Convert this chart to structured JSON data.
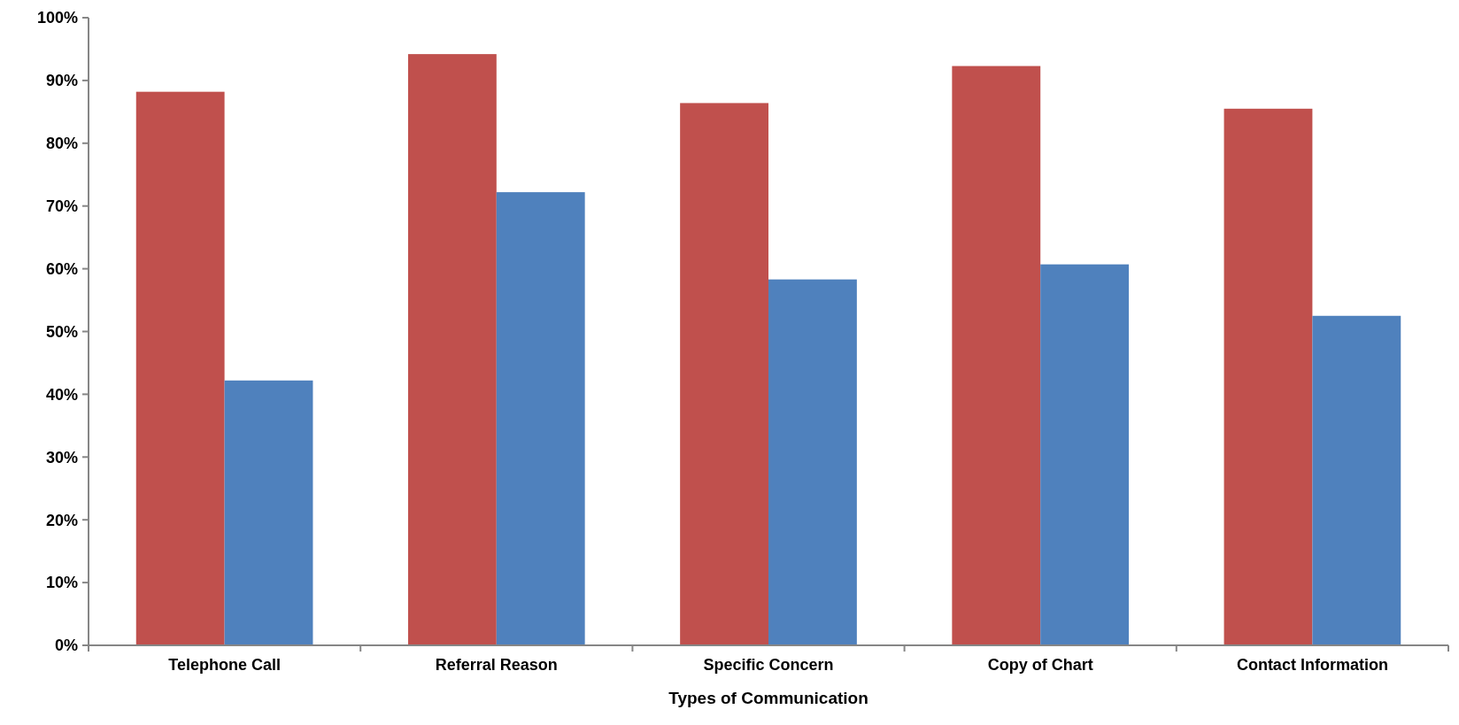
{
  "chart_data": {
    "type": "bar",
    "xlabel": "Types of Communication",
    "categories": [
      "Telephone Call",
      "Referral Reason",
      "Specific Concern",
      "Copy of Chart",
      "Contact Information"
    ],
    "series": [
      {
        "color": "#c0504d",
        "values": [
          88.2,
          94.2,
          86.4,
          92.3,
          85.5
        ]
      },
      {
        "color": "#4f81bd",
        "values": [
          42.2,
          72.2,
          58.3,
          60.7,
          52.5
        ]
      }
    ],
    "ylim": [
      0,
      100
    ],
    "yticks": [
      {
        "value": 0,
        "label": "0%"
      },
      {
        "value": 10,
        "label": "10%"
      },
      {
        "value": 20,
        "label": "20%"
      },
      {
        "value": 30,
        "label": "30%"
      },
      {
        "value": 40,
        "label": "40%"
      },
      {
        "value": 50,
        "label": "50%"
      },
      {
        "value": 60,
        "label": "60%"
      },
      {
        "value": 70,
        "label": "70%"
      },
      {
        "value": 80,
        "label": "80%"
      },
      {
        "value": 90,
        "label": "90%"
      },
      {
        "value": 100,
        "label": "100%"
      }
    ],
    "grid": false
  }
}
